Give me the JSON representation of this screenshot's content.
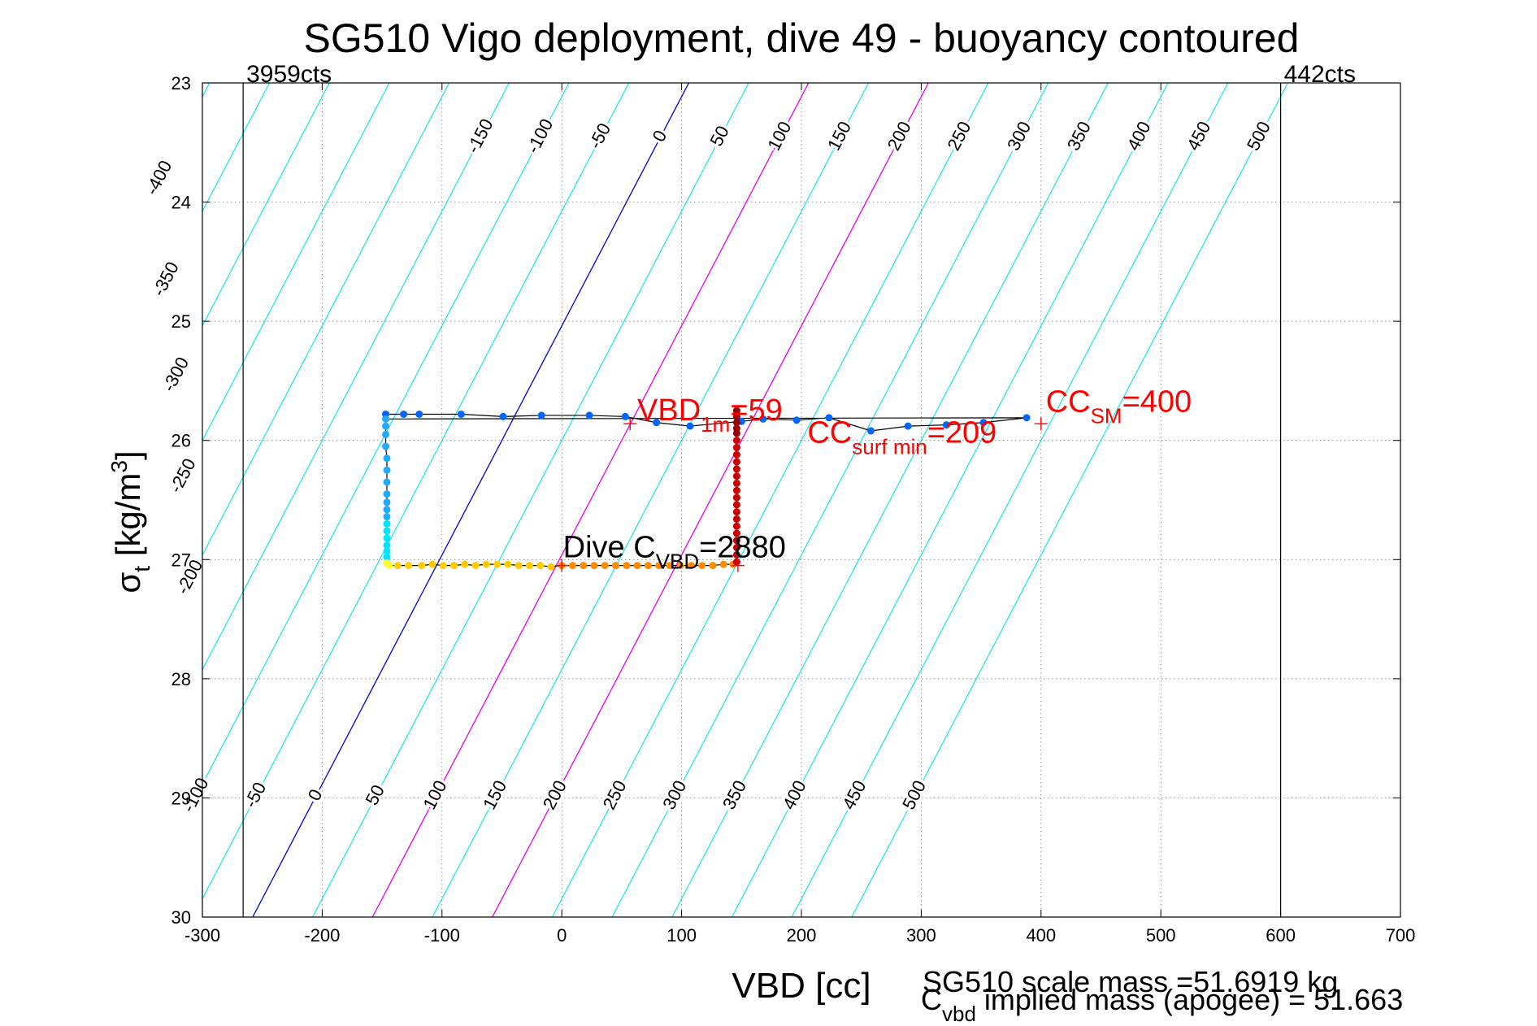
{
  "chart_data": {
    "type": "scatter",
    "title": "SG510 Vigo deployment, dive 49 - buoyancy contoured",
    "xlabel": "VBD [cc]",
    "ylabel_main": "σ",
    "ylabel_sub": "t",
    "ylabel_rest": " [kg/m",
    "ylabel_sup": "3",
    "ylabel_end": "]",
    "xlim": [
      -300,
      700
    ],
    "ylim": [
      23,
      30
    ],
    "y_reversed": true,
    "grid": true,
    "xticks": [
      "-300",
      "-200",
      "-100",
      "0",
      "100",
      "200",
      "300",
      "400",
      "500",
      "600",
      "700"
    ],
    "yticks": [
      "23",
      "24",
      "25",
      "26",
      "27",
      "28",
      "29",
      "30"
    ],
    "limit_lines": [
      {
        "x": -266,
        "label": "3959cts"
      },
      {
        "x": 600,
        "label": "442cts"
      }
    ],
    "contours": {
      "levels": [
        -400,
        -350,
        -300,
        -250,
        -200,
        -150,
        -100,
        -50,
        0,
        50,
        100,
        150,
        200,
        250,
        300,
        350,
        400,
        450,
        500
      ],
      "x_at_sigma23": [
        -294,
        -244,
        -194,
        -144,
        -94,
        -44,
        6,
        56,
        106,
        156,
        206,
        256,
        306,
        356,
        406,
        456,
        506,
        556,
        606
      ],
      "x_per_sigma": -52,
      "default_color": "#00e5e5",
      "zero_color": "#0000cc",
      "highlight_color": "#e600e6",
      "highlight_levels": [
        100,
        200
      ],
      "top_labels": [
        "-400",
        "-150",
        "-100",
        "-50",
        "0",
        "50",
        "100",
        "150",
        "200",
        "250",
        "300",
        "350",
        "400",
        "450",
        "500"
      ],
      "left_labels": [
        "-350",
        "-300",
        "-250",
        "-200"
      ],
      "bottom_labels": [
        "-100",
        "-50",
        "0",
        "50",
        "100",
        "150",
        "200",
        "250",
        "300",
        "350",
        "400",
        "450",
        "500"
      ]
    },
    "series": [
      {
        "color": "#0066ff",
        "points": [
          [
            -147,
            25.78
          ],
          [
            -132,
            25.78
          ],
          [
            -119,
            25.78
          ],
          [
            -84,
            25.78
          ],
          [
            -49,
            25.8
          ],
          [
            -17,
            25.79
          ],
          [
            23,
            25.79
          ],
          [
            53,
            25.8
          ],
          [
            79,
            25.85
          ],
          [
            107,
            25.88
          ],
          [
            150,
            25.84
          ],
          [
            168,
            25.82
          ],
          [
            196,
            25.83
          ],
          [
            223,
            25.81
          ],
          [
            258,
            25.92
          ],
          [
            289,
            25.88
          ],
          [
            321,
            25.87
          ],
          [
            352,
            25.85
          ],
          [
            388,
            25.81
          ]
        ]
      },
      {
        "color": "#22aaff",
        "points": [
          [
            -147,
            25.82
          ],
          [
            -147,
            25.88
          ],
          [
            -147,
            25.95
          ],
          [
            -147,
            26.05
          ],
          [
            -146,
            26.15
          ],
          [
            -146,
            26.25
          ],
          [
            -146,
            26.35
          ],
          [
            -146,
            26.45
          ],
          [
            -146,
            26.52
          ],
          [
            -146,
            26.58
          ],
          [
            -146,
            26.64
          ]
        ]
      },
      {
        "color": "#00e5ff",
        "points": [
          [
            -146,
            26.7
          ],
          [
            -146,
            26.76
          ],
          [
            -146,
            26.82
          ],
          [
            -146,
            26.88
          ],
          [
            -146,
            26.93
          ],
          [
            -146,
            26.98
          ]
        ]
      },
      {
        "color": "#ffff33",
        "points": [
          [
            -146,
            27.03
          ],
          [
            -144,
            27.05
          ]
        ]
      },
      {
        "color": "#ffcc00",
        "points": [
          [
            -137,
            27.05
          ],
          [
            -128,
            27.05
          ],
          [
            -117,
            27.05
          ],
          [
            -108,
            27.04
          ],
          [
            -99,
            27.05
          ],
          [
            -90,
            27.05
          ],
          [
            -81,
            27.04
          ],
          [
            -72,
            27.05
          ],
          [
            -63,
            27.04
          ],
          [
            -54,
            27.04
          ],
          [
            -45,
            27.04
          ],
          [
            -36,
            27.05
          ],
          [
            -27,
            27.05
          ],
          [
            -18,
            27.05
          ],
          [
            -9,
            27.06
          ]
        ]
      },
      {
        "color": "#ff8c00",
        "points": [
          [
            0,
            27.05
          ],
          [
            9,
            27.05
          ],
          [
            18,
            27.05
          ],
          [
            27,
            27.05
          ],
          [
            36,
            27.05
          ],
          [
            45,
            27.05
          ],
          [
            54,
            27.05
          ],
          [
            63,
            27.05
          ],
          [
            72,
            27.05
          ],
          [
            81,
            27.05
          ],
          [
            90,
            27.05
          ],
          [
            99,
            27.05
          ],
          [
            108,
            27.05
          ],
          [
            117,
            27.05
          ],
          [
            126,
            27.05
          ],
          [
            135,
            27.04
          ],
          [
            143,
            27.04
          ]
        ]
      },
      {
        "color": "#cc0000",
        "points": [
          [
            146,
            27.02
          ],
          [
            146,
            26.96
          ],
          [
            146,
            26.9
          ],
          [
            146,
            26.84
          ],
          [
            146,
            26.78
          ],
          [
            146,
            26.72
          ],
          [
            146,
            26.66
          ],
          [
            146,
            26.6
          ],
          [
            146,
            26.54
          ],
          [
            146,
            26.48
          ],
          [
            146,
            26.42
          ],
          [
            146,
            26.36
          ],
          [
            146,
            26.3
          ],
          [
            146,
            26.24
          ],
          [
            146,
            26.18
          ],
          [
            146,
            26.12
          ],
          [
            146,
            26.06
          ],
          [
            146,
            26.0
          ]
        ]
      },
      {
        "color": "#990000",
        "points": [
          [
            146,
            25.94
          ],
          [
            146,
            25.9
          ],
          [
            146,
            25.85
          ],
          [
            146,
            25.8
          ],
          [
            146,
            25.75
          ]
        ]
      }
    ],
    "markers": [
      [
        57,
        25.86
      ],
      [
        0,
        27.05
      ],
      [
        400,
        25.86
      ],
      [
        147,
        27.05
      ]
    ],
    "annotations": [
      {
        "text": "VBD",
        "sub": "1m",
        "rest": "=59",
        "color": "#ff0000",
        "x": 63,
        "y": 25.83
      },
      {
        "text": "CC",
        "sub": "surf min",
        "rest": "=209",
        "color": "#ff0000",
        "x": 205,
        "y": 26.02
      },
      {
        "text": "CC",
        "sub": "SM",
        "rest": "=400",
        "color": "#ff0000",
        "x": 404,
        "y": 25.76
      },
      {
        "text": "Dive C",
        "sub": "VBD",
        "rest": "=2880",
        "color": "#000000",
        "x": 1,
        "y": 26.98
      }
    ],
    "footer_line1": "SG510 scale mass =51.6919 kg",
    "footer_c": "C",
    "footer_sub": "vbd",
    "footer_rest": " implied mass (apogee) = 51.663"
  }
}
